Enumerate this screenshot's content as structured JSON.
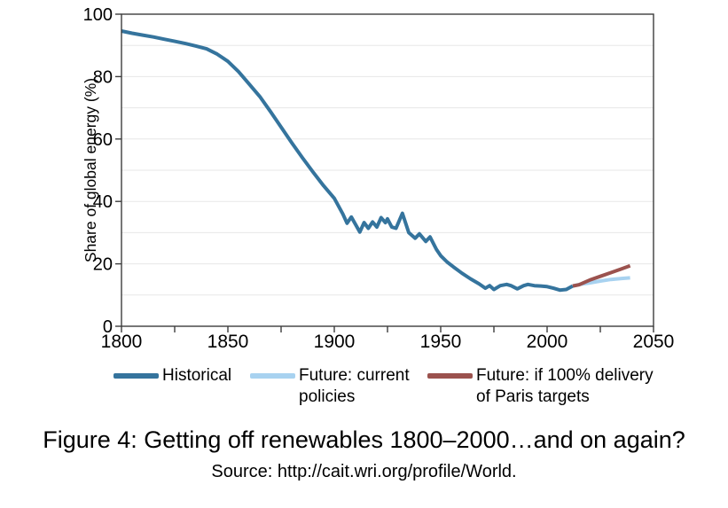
{
  "figure": {
    "caption": "Figure 4: Getting off renewables 1800–2000…and on again?",
    "source": "Source: http://cait.wri.org/profile/World."
  },
  "chart_data": {
    "type": "line",
    "title": "",
    "xlabel": "",
    "ylabel": "Share of global energy (%)",
    "xlim": [
      1800,
      2050
    ],
    "ylim": [
      0,
      100
    ],
    "x_tick_labels": [
      1800,
      1850,
      1900,
      1950,
      2000,
      2050
    ],
    "x_ticks": [
      1800,
      1825,
      1850,
      1875,
      1900,
      1925,
      1950,
      1975,
      2000,
      2025,
      2050
    ],
    "y_tick_labels": [
      0,
      20,
      40,
      60,
      80,
      100
    ],
    "y_gridlines": [
      10,
      20,
      30,
      40,
      50,
      60,
      70,
      80,
      90
    ],
    "grid": "horizontal light gray every 10%",
    "legend_position": "bottom",
    "series": [
      {
        "id": "historical",
        "name": "Historical",
        "color": "#35749d",
        "x": [
          1800,
          1805,
          1810,
          1815,
          1820,
          1825,
          1830,
          1835,
          1840,
          1845,
          1850,
          1855,
          1860,
          1865,
          1870,
          1875,
          1880,
          1885,
          1890,
          1895,
          1900,
          1904,
          1906,
          1908,
          1912,
          1914,
          1916,
          1918,
          1920,
          1922,
          1924,
          1925,
          1927,
          1929,
          1932,
          1935,
          1938,
          1940,
          1943,
          1945,
          1948,
          1950,
          1953,
          1956,
          1960,
          1964,
          1968,
          1971,
          1973,
          1975,
          1978,
          1981,
          1983,
          1986,
          1989,
          1991,
          1994,
          1997,
          2000,
          2003,
          2006,
          2009,
          2012
        ],
        "y": [
          94.6,
          93.9,
          93.3,
          92.7,
          92.0,
          91.3,
          90.6,
          89.8,
          88.9,
          87.2,
          84.9,
          81.6,
          77.6,
          73.6,
          68.8,
          63.8,
          58.8,
          54.0,
          49.4,
          45.0,
          41.0,
          36.0,
          33.0,
          35.0,
          30.2,
          33.2,
          31.4,
          33.4,
          31.8,
          34.8,
          33.2,
          34.4,
          31.8,
          31.4,
          36.2,
          30.0,
          28.2,
          29.6,
          27.2,
          28.6,
          24.6,
          22.6,
          20.6,
          19.0,
          17.0,
          15.2,
          13.6,
          12.2,
          13.0,
          11.8,
          13.0,
          13.4,
          13.0,
          12.0,
          13.0,
          13.4,
          13.0,
          12.9,
          12.7,
          12.2,
          11.6,
          11.8,
          12.9
        ]
      },
      {
        "id": "future-current-policies",
        "name": "Future: current policies",
        "color": "#a8d2f0",
        "x": [
          2012,
          2016,
          2020,
          2025,
          2030,
          2035,
          2039
        ],
        "y": [
          12.9,
          13.5,
          13.9,
          14.5,
          15.0,
          15.3,
          15.5
        ]
      },
      {
        "id": "future-paris-targets",
        "name": "Future: if 100% delivery of Paris targets",
        "color": "#9b524e",
        "x": [
          2012,
          2015,
          2020,
          2025,
          2030,
          2035,
          2039
        ],
        "y": [
          12.9,
          13.3,
          14.8,
          16.0,
          17.2,
          18.4,
          19.4
        ]
      }
    ]
  },
  "legend": {
    "items": [
      {
        "series": "historical",
        "lines": [
          "Historical"
        ]
      },
      {
        "series": "future-current-policies",
        "lines": [
          "Future: current",
          "policies"
        ]
      },
      {
        "series": "future-paris-targets",
        "lines": [
          "Future: if 100% delivery",
          "of Paris targets"
        ]
      }
    ]
  }
}
